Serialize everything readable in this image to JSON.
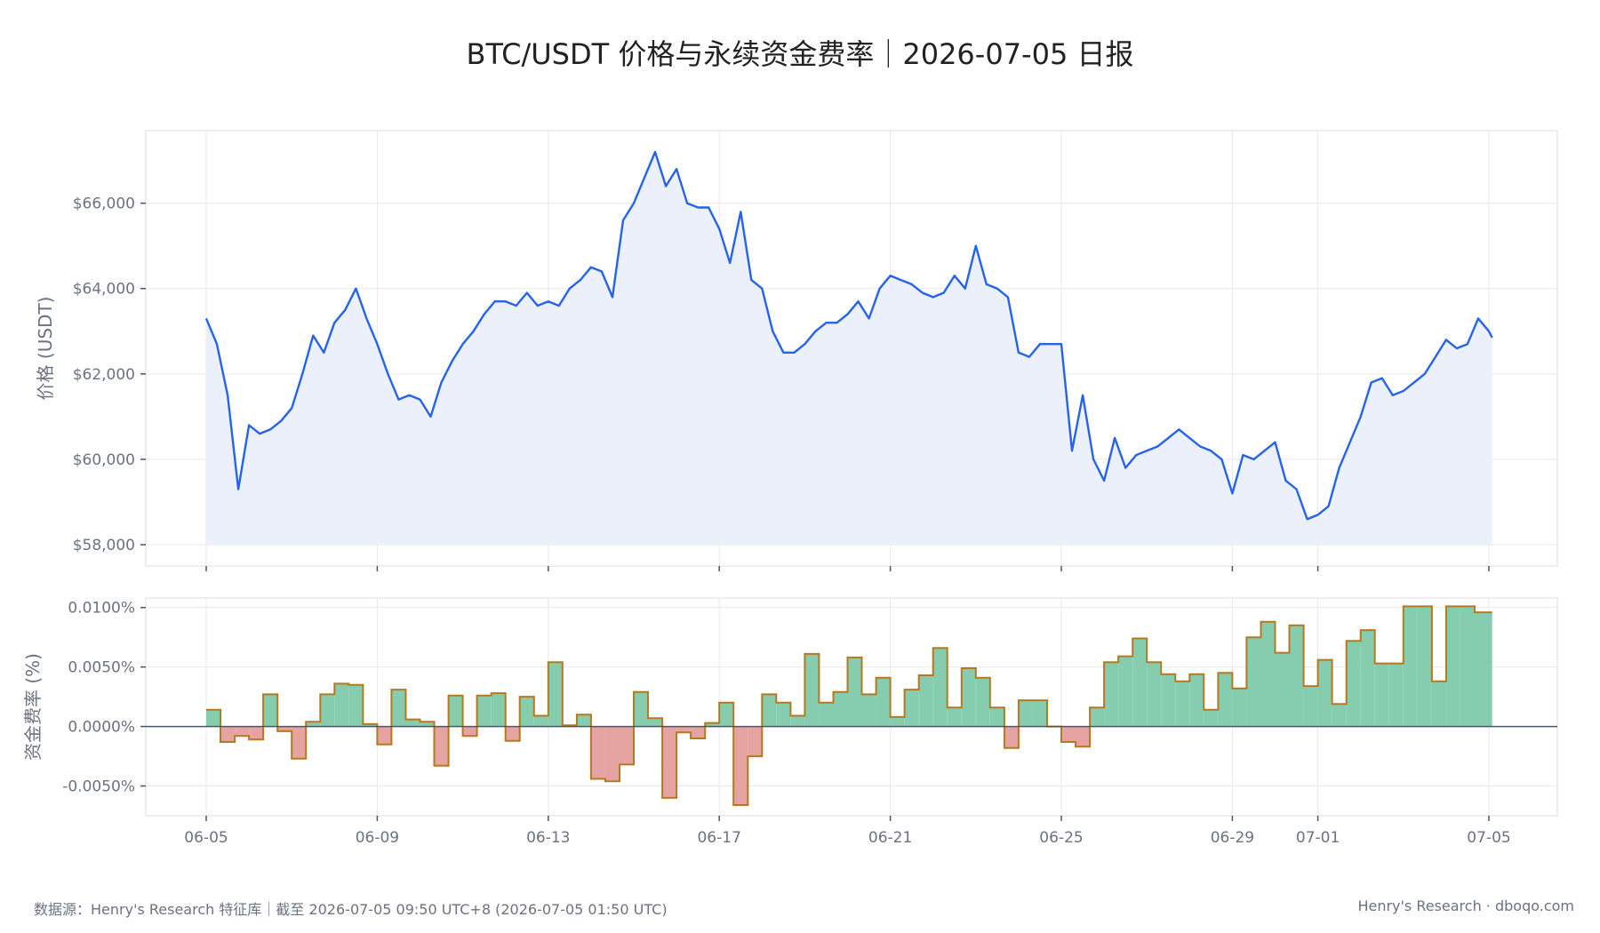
{
  "title": "BTC/USDT 价格与永续资金费率｜2026-07-05 日报",
  "footer": {
    "left": "数据源：Henry's Research 特征库｜截至 2026-07-05 09:50 UTC+8 (2026-07-05 01:50 UTC)",
    "right": "Henry's Research · dboqo.com"
  },
  "colors": {
    "price_line": "#2563eb",
    "price_fill": "#ebf0fb",
    "funding_positive": "#86cdb0",
    "funding_negative": "#e5a3a2",
    "funding_step_line": "#b7791f",
    "zero_line": "#4b5563",
    "grid": "#e8e8e8"
  },
  "chart_data": [
    {
      "type": "line",
      "ylabel": "价格 (USDT)",
      "yticks": [
        58000,
        60000,
        62000,
        64000,
        66000
      ],
      "ytick_labels": [
        "$58,000",
        "$60,000",
        "$62,000",
        "$64,000",
        "$66,000"
      ],
      "ylim": [
        57500,
        67700
      ],
      "grid": true,
      "series": [
        {
          "x": [
            "06-05 00:00",
            "06-05 06:00",
            "06-05 12:00",
            "06-05 18:00",
            "06-06 00:00",
            "06-06 06:00",
            "06-06 12:00",
            "06-06 18:00",
            "06-07 00:00",
            "06-07 06:00",
            "06-07 12:00",
            "06-07 18:00",
            "06-08 00:00",
            "06-08 06:00",
            "06-08 12:00",
            "06-08 18:00",
            "06-09 00:00",
            "06-09 06:00",
            "06-09 12:00",
            "06-09 18:00",
            "06-10 00:00",
            "06-10 06:00",
            "06-10 12:00",
            "06-10 18:00",
            "06-11 00:00",
            "06-11 06:00",
            "06-11 12:00",
            "06-11 18:00",
            "06-12 00:00",
            "06-12 06:00",
            "06-12 12:00",
            "06-12 18:00",
            "06-13 00:00",
            "06-13 06:00",
            "06-13 12:00",
            "06-13 18:00",
            "06-14 00:00",
            "06-14 06:00",
            "06-14 12:00",
            "06-14 18:00",
            "06-15 00:00",
            "06-15 06:00",
            "06-15 12:00",
            "06-15 18:00",
            "06-16 00:00",
            "06-16 06:00",
            "06-16 12:00",
            "06-16 18:00",
            "06-17 00:00",
            "06-17 06:00",
            "06-17 12:00",
            "06-17 18:00",
            "06-18 00:00",
            "06-18 06:00",
            "06-18 12:00",
            "06-18 18:00",
            "06-19 00:00",
            "06-19 06:00",
            "06-19 12:00",
            "06-19 18:00",
            "06-20 00:00",
            "06-20 06:00",
            "06-20 12:00",
            "06-20 18:00",
            "06-21 00:00",
            "06-21 06:00",
            "06-21 12:00",
            "06-21 18:00",
            "06-22 00:00",
            "06-22 06:00",
            "06-22 12:00",
            "06-22 18:00",
            "06-23 00:00",
            "06-23 06:00",
            "06-23 12:00",
            "06-23 18:00",
            "06-24 00:00",
            "06-24 06:00",
            "06-24 12:00",
            "06-24 18:00",
            "06-25 00:00",
            "06-25 06:00",
            "06-25 12:00",
            "06-25 18:00",
            "06-26 00:00",
            "06-26 06:00",
            "06-26 12:00",
            "06-26 18:00",
            "06-27 00:00",
            "06-27 06:00",
            "06-27 12:00",
            "06-27 18:00",
            "06-28 00:00",
            "06-28 06:00",
            "06-28 12:00",
            "06-28 18:00",
            "06-29 00:00",
            "06-29 06:00",
            "06-29 12:00",
            "06-29 18:00",
            "06-30 00:00",
            "06-30 06:00",
            "06-30 12:00",
            "06-30 18:00",
            "07-01 00:00",
            "07-01 06:00",
            "07-01 12:00",
            "07-01 18:00",
            "07-02 00:00",
            "07-02 06:00",
            "07-02 12:00",
            "07-02 18:00",
            "07-03 00:00",
            "07-03 06:00",
            "07-03 12:00",
            "07-03 18:00",
            "07-04 00:00",
            "07-04 06:00",
            "07-04 12:00",
            "07-04 18:00",
            "07-05 00:00",
            "07-05 01:50"
          ],
          "values": [
            63300,
            62700,
            61500,
            59300,
            60800,
            60600,
            60700,
            60900,
            61200,
            62000,
            62900,
            62500,
            63200,
            63500,
            64000,
            63300,
            62700,
            62000,
            61400,
            61500,
            61400,
            61000,
            61800,
            62300,
            62700,
            63000,
            63400,
            63700,
            63700,
            63600,
            63900,
            63600,
            63700,
            63600,
            64000,
            64200,
            64500,
            64400,
            63800,
            65600,
            66000,
            66600,
            67200,
            66400,
            66800,
            66000,
            65900,
            65900,
            65400,
            64600,
            65800,
            64200,
            64000,
            63000,
            62500,
            62500,
            62700,
            63000,
            63200,
            63200,
            63400,
            63700,
            63300,
            64000,
            64300,
            64200,
            64100,
            63900,
            63800,
            63900,
            64300,
            64000,
            65000,
            64100,
            64000,
            63800,
            62500,
            62400,
            62700,
            62700,
            62700,
            60200,
            61500,
            60000,
            59500,
            60500,
            59800,
            60100,
            60200,
            60300,
            60500,
            60700,
            60500,
            60300,
            60200,
            60000,
            59200,
            60100,
            60000,
            60200,
            60400,
            59500,
            59300,
            58600,
            58700,
            58900,
            59800,
            60400,
            61000,
            61800,
            61900,
            61500,
            61600,
            61800,
            62000,
            62400,
            62800,
            62600,
            62700,
            63300,
            63000,
            62850
          ]
        }
      ]
    },
    {
      "type": "step",
      "ylabel": "资金费率 (%)",
      "yticks": [
        -0.005,
        0,
        0.005,
        0.01
      ],
      "ytick_labels": [
        "-0.0050%",
        "0.0000%",
        "0.0050%",
        "0.0100%"
      ],
      "ylim": [
        -0.0075,
        0.0108
      ],
      "xtick_labels": [
        "06-05",
        "06-09",
        "06-13",
        "06-17",
        "06-21",
        "06-25",
        "06-29",
        "07-01",
        "07-05"
      ],
      "xticks": [
        "06-05 00:00",
        "06-09 00:00",
        "06-13 00:00",
        "06-17 00:00",
        "06-21 00:00",
        "06-25 00:00",
        "06-29 00:00",
        "07-01 00:00",
        "07-05 00:00"
      ],
      "interval_hours": 8,
      "start": "06-05 00:00",
      "values": [
        0.0014,
        -0.0013,
        -0.0008,
        -0.0011,
        0.0027,
        -0.0004,
        -0.0027,
        0.0004,
        0.0027,
        0.0036,
        0.0035,
        0.0002,
        -0.0015,
        0.0031,
        0.0006,
        0.0004,
        -0.0033,
        0.0026,
        -0.0008,
        0.0026,
        0.0028,
        -0.0012,
        0.0025,
        0.0009,
        0.0054,
        0.0001,
        0.001,
        -0.0044,
        -0.0046,
        -0.0032,
        0.0029,
        0.0007,
        -0.006,
        -0.0005,
        -0.001,
        0.0003,
        0.002,
        -0.0066,
        -0.0025,
        0.0027,
        0.002,
        0.0009,
        0.0061,
        0.002,
        0.0029,
        0.0058,
        0.0027,
        0.0041,
        0.0008,
        0.0031,
        0.0043,
        0.0066,
        0.0016,
        0.0049,
        0.0041,
        0.0016,
        -0.0018,
        0.0022,
        0.0022,
        0.0,
        -0.0013,
        -0.0017,
        0.0016,
        0.0054,
        0.0059,
        0.0074,
        0.0054,
        0.0044,
        0.0038,
        0.0044,
        0.0014,
        0.0045,
        0.0032,
        0.0075,
        0.0088,
        0.0062,
        0.0085,
        0.0034,
        0.0056,
        0.0019,
        0.0072,
        0.0081,
        0.0053,
        0.0053,
        0.0101,
        0.0101,
        0.0038,
        0.0101,
        0.0101,
        0.0096
      ]
    }
  ]
}
